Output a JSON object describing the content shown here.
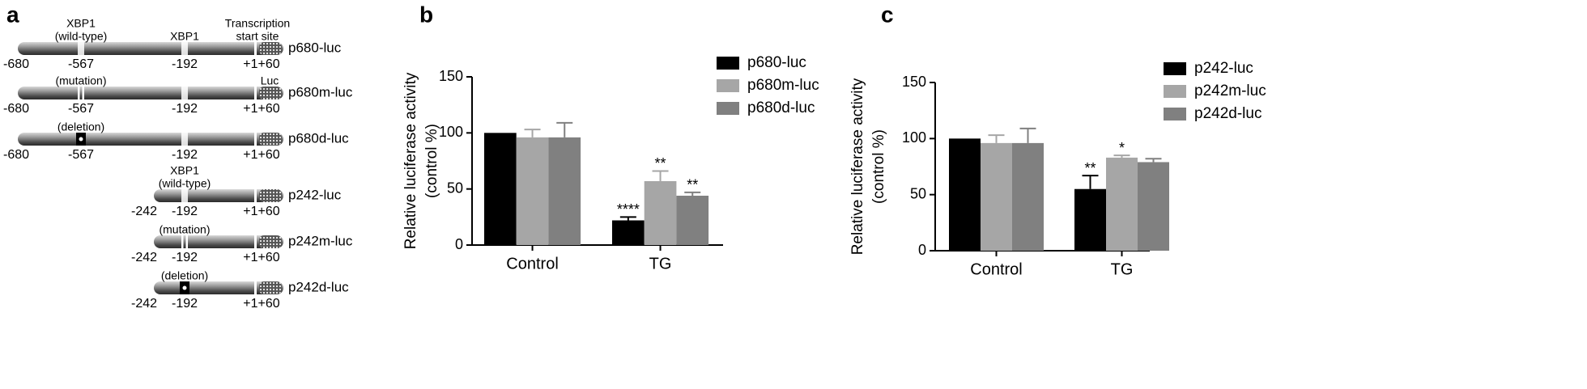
{
  "diagram": {
    "panel_label": "a",
    "constructs": [
      {
        "name": "p680-luc",
        "above": [
          [
            "XBP1",
            "(wild-type)"
          ],
          [
            "XBP1"
          ],
          [
            "Transcription",
            "start site"
          ]
        ],
        "below": [
          "-680",
          "-567",
          "-192",
          "+1+60"
        ]
      },
      {
        "name": "p680m-luc",
        "above": [
          [
            "(mutation)"
          ],
          [
            "Luc"
          ]
        ],
        "below": [
          "-680",
          "-567",
          "-192",
          "+1+60"
        ]
      },
      {
        "name": "p680d-luc",
        "above": [
          [
            "(deletion)"
          ]
        ],
        "below": [
          "-680",
          "-567",
          "-192",
          "+1+60"
        ]
      },
      {
        "name": "p242-luc",
        "above": [
          [
            "XBP1",
            "(wild-type)"
          ]
        ],
        "below": [
          "-242",
          "-192",
          "+1+60"
        ]
      },
      {
        "name": "p242m-luc",
        "above": [
          [
            "(mutation)"
          ]
        ],
        "below": [
          "-242",
          "-192",
          "+1+60"
        ]
      },
      {
        "name": "p242d-luc",
        "above": [
          [
            "(deletion)"
          ]
        ],
        "below": [
          "-242",
          "-192",
          "+1+60"
        ]
      }
    ]
  },
  "chart_data": [
    {
      "type": "bar",
      "panel_label": "b",
      "ylabel": [
        "Relative luciferase activity",
        "(control %)"
      ],
      "categories": [
        "Control",
        "TG"
      ],
      "ylim": [
        0,
        150
      ],
      "yticks": [
        0,
        50,
        100,
        150
      ],
      "series": [
        {
          "name": "p680-luc",
          "color": "#000000",
          "values": [
            100,
            22
          ],
          "errors": [
            null,
            3
          ],
          "annotations": [
            null,
            "****"
          ]
        },
        {
          "name": "p680m-luc",
          "color": "#a6a6a6",
          "values": [
            96,
            57
          ],
          "errors": [
            7,
            9
          ],
          "annotations": [
            null,
            "**"
          ]
        },
        {
          "name": "p680d-luc",
          "color": "#808080",
          "values": [
            96,
            44
          ],
          "errors": [
            13,
            3
          ],
          "annotations": [
            null,
            "**"
          ]
        }
      ]
    },
    {
      "type": "bar",
      "panel_label": "c",
      "ylabel": [
        "Relative luciferase activity",
        "(control %)"
      ],
      "categories": [
        "Control",
        "TG"
      ],
      "ylim": [
        0,
        150
      ],
      "yticks": [
        0,
        50,
        100,
        150
      ],
      "series": [
        {
          "name": "p242-luc",
          "color": "#000000",
          "values": [
            100,
            55
          ],
          "errors": [
            null,
            12
          ],
          "annotations": [
            null,
            "**"
          ]
        },
        {
          "name": "p242m-luc",
          "color": "#a6a6a6",
          "values": [
            96,
            83
          ],
          "errors": [
            7,
            2
          ],
          "annotations": [
            null,
            "*"
          ]
        },
        {
          "name": "p242d-luc",
          "color": "#808080",
          "values": [
            96,
            79
          ],
          "errors": [
            13,
            3
          ],
          "annotations": [
            null,
            null
          ]
        }
      ]
    }
  ]
}
